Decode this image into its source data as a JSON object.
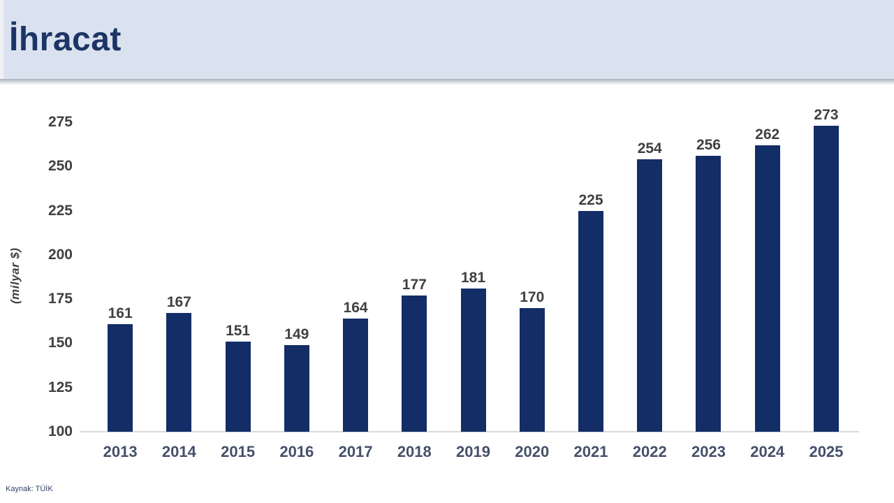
{
  "header": {
    "title": "İhracat"
  },
  "chart_data": {
    "type": "bar",
    "title": "İhracat",
    "ylabel": "(milyar $)",
    "xlabel": "",
    "categories": [
      "2013",
      "2014",
      "2015",
      "2016",
      "2017",
      "2018",
      "2019",
      "2020",
      "2021",
      "2022",
      "2023",
      "2024",
      "2025"
    ],
    "values": [
      161,
      167,
      151,
      149,
      164,
      177,
      181,
      170,
      225,
      254,
      256,
      262,
      273
    ],
    "yticks": [
      275,
      250,
      225,
      200,
      175,
      150,
      125,
      100
    ],
    "ylim": [
      100,
      275
    ],
    "grid": "off",
    "legend": "none",
    "data_labels": "above bars",
    "bar_color": "#132d67",
    "label_color": "#404040",
    "axis_line_color": "#d9d9d9"
  },
  "footer": {
    "source": "Kaynak: TÜİK"
  }
}
